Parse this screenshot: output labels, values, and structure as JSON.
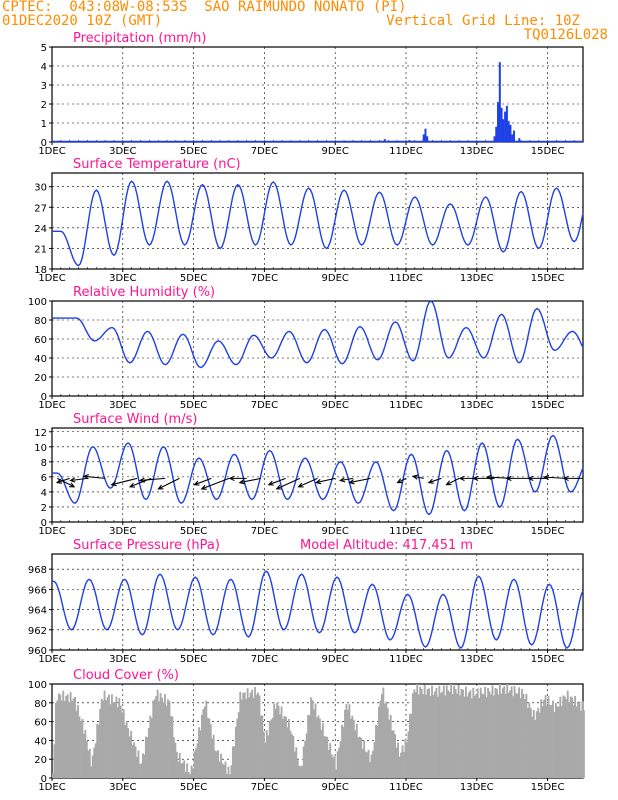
{
  "header": {
    "line1": "CPTEC:  043:08W-08:53S  SAO RAIMUNDO NONATO (PI)",
    "line2_left": "01DEC2020 10Z (GMT)",
    "line2_right": "Vertical Grid Line: 10Z",
    "line3_right": "TQ0126L028"
  },
  "colors": {
    "header": "#ff8c00",
    "title": "#ff1493",
    "line": "#1e40e6",
    "bar": "#1e40e6",
    "cloud": "#a9a9a9"
  },
  "x_labels": [
    "1DEC",
    "3DEC",
    "5DEC",
    "7DEC",
    "9DEC",
    "11DEC",
    "13DEC",
    "15DEC"
  ],
  "x_label_days": [
    0,
    2,
    4,
    6,
    8,
    10,
    12,
    14
  ],
  "x_range_days": [
    0,
    15
  ],
  "panels": {
    "precip": {
      "title": "Precipitation (mm/h)",
      "yticks": [
        "0",
        "1",
        "2",
        "3",
        "4",
        "5"
      ]
    },
    "temp": {
      "title": "Surface Temperature (nC)",
      "yticks": [
        "18",
        "21",
        "24",
        "27",
        "30"
      ]
    },
    "rh": {
      "title": "Relative Humidity (%)",
      "yticks": [
        "0",
        "20",
        "40",
        "60",
        "80",
        "100"
      ]
    },
    "wind": {
      "title": "Surface Wind (m/s)",
      "yticks": [
        "0",
        "2",
        "4",
        "6",
        "8",
        "10",
        "12"
      ]
    },
    "pres": {
      "title": "Surface Pressure (hPa)",
      "extra": "Model Altitude: 417.451 m",
      "yticks": [
        "960",
        "962",
        "964",
        "966",
        "968"
      ]
    },
    "cloud": {
      "title": "Cloud Cover (%)",
      "yticks": [
        "0",
        "20",
        "40",
        "60",
        "80",
        "100"
      ]
    }
  },
  "chart_data": [
    {
      "type": "bar",
      "title": "Precipitation (mm/h)",
      "ylim": [
        0,
        5
      ],
      "events": [
        {
          "day": 9.4,
          "value": 0.15
        },
        {
          "day": 10.1,
          "value": 0.1
        },
        {
          "day": 10.5,
          "value": 0.4
        },
        {
          "day": 10.55,
          "value": 0.7
        },
        {
          "day": 10.6,
          "value": 0.3
        },
        {
          "day": 12.5,
          "value": 0.3
        },
        {
          "day": 12.55,
          "value": 0.8
        },
        {
          "day": 12.6,
          "value": 2.1
        },
        {
          "day": 12.65,
          "value": 4.2
        },
        {
          "day": 12.7,
          "value": 1.8
        },
        {
          "day": 12.75,
          "value": 1.2
        },
        {
          "day": 12.8,
          "value": 1.6
        },
        {
          "day": 12.85,
          "value": 1.9
        },
        {
          "day": 12.9,
          "value": 1.1
        },
        {
          "day": 12.95,
          "value": 0.9
        },
        {
          "day": 13.0,
          "value": 0.4
        },
        {
          "day": 13.05,
          "value": 0.6
        },
        {
          "day": 13.2,
          "value": 0.2
        }
      ]
    },
    {
      "type": "line",
      "title": "Surface Temperature (nC)",
      "ylim": [
        18,
        32
      ],
      "daily_max": [
        23.5,
        29.5,
        30.8,
        30.8,
        30.3,
        30.3,
        30.7,
        29.8,
        29.5,
        29.2,
        28.5,
        27.5,
        28.5,
        29.3,
        29.8,
        30.3
      ],
      "daily_min": [
        18.5,
        20.0,
        21.5,
        21.5,
        21.0,
        21.5,
        21.5,
        21.0,
        21.5,
        21.5,
        21.5,
        21.5,
        20.5,
        21.0,
        22.0,
        22.0
      ]
    },
    {
      "type": "line",
      "title": "Relative Humidity (%)",
      "ylim": [
        0,
        100
      ],
      "daily_max": [
        82,
        72,
        68,
        65,
        58,
        64,
        68,
        70,
        73,
        78,
        100,
        72,
        86,
        92,
        68,
        68
      ],
      "daily_min": [
        58,
        35,
        33,
        30,
        33,
        40,
        35,
        34,
        38,
        37,
        40,
        40,
        35,
        48,
        42,
        35
      ]
    },
    {
      "type": "line",
      "title": "Surface Wind (m/s)",
      "ylim": [
        0,
        12.5
      ],
      "speed_daily_max": [
        6.5,
        10.0,
        10.5,
        10.0,
        8.5,
        9.0,
        9.5,
        8.5,
        8.0,
        8.0,
        9.0,
        9.5,
        10.5,
        11.0,
        11.5,
        8.0
      ],
      "speed_daily_min": [
        2.5,
        4.5,
        3.0,
        2.5,
        3.0,
        3.0,
        3.0,
        3.0,
        2.5,
        1.5,
        1.0,
        1.5,
        2.0,
        4.0,
        4.0,
        3.5
      ],
      "arrows": [
        {
          "day": 0.15,
          "u": 4.0,
          "v": -2.0
        },
        {
          "day": 0.5,
          "u": -3.0,
          "v": -1.0
        },
        {
          "day": 1.0,
          "u": -4.0,
          "v": -0.5
        },
        {
          "day": 1.5,
          "u": -5.0,
          "v": 0.5
        },
        {
          "day": 2.4,
          "u": -6.0,
          "v": -1.5
        },
        {
          "day": 2.8,
          "u": -5.0,
          "v": -2.0
        },
        {
          "day": 3.2,
          "u": -6.0,
          "v": -0.5
        },
        {
          "day": 3.6,
          "u": -5.0,
          "v": -2.5
        },
        {
          "day": 4.5,
          "u": -4.0,
          "v": -1.5
        },
        {
          "day": 5.0,
          "u": -6.5,
          "v": -2.5
        },
        {
          "day": 5.5,
          "u": -4.0,
          "v": 0.0
        },
        {
          "day": 5.9,
          "u": -5.0,
          "v": -1.0
        },
        {
          "day": 6.6,
          "u": -4.0,
          "v": -1.5
        },
        {
          "day": 7.0,
          "u": -5.5,
          "v": -2.5
        },
        {
          "day": 7.5,
          "u": -4.5,
          "v": -2.0
        },
        {
          "day": 8.0,
          "u": -4.5,
          "v": -1.0
        },
        {
          "day": 8.5,
          "u": -3.0,
          "v": -0.5
        },
        {
          "day": 9.0,
          "u": -5.0,
          "v": -1.0
        },
        {
          "day": 10.0,
          "u": -2.0,
          "v": -1.0
        },
        {
          "day": 10.5,
          "u": -2.5,
          "v": 0.5
        },
        {
          "day": 11.0,
          "u": -3.0,
          "v": -1.0
        },
        {
          "day": 11.5,
          "u": -3.0,
          "v": -1.5
        },
        {
          "day": 12.0,
          "u": -4.0,
          "v": 0.0
        },
        {
          "day": 12.5,
          "u": -5.0,
          "v": 0.0
        },
        {
          "day": 13.0,
          "u": -6.0,
          "v": 0.3
        },
        {
          "day": 13.5,
          "u": -5.5,
          "v": 0.0
        },
        {
          "day": 14.0,
          "u": -4.5,
          "v": 0.0
        },
        {
          "day": 14.5,
          "u": -5.0,
          "v": 0.3
        },
        {
          "day": 15.0,
          "u": -4.5,
          "v": 0.0
        }
      ]
    },
    {
      "type": "line",
      "title": "Surface Pressure (hPa)",
      "ylim": [
        960,
        969.5
      ],
      "daily_max": [
        966.8,
        967.0,
        967.0,
        967.5,
        967.2,
        967.0,
        967.8,
        967.5,
        967.2,
        966.5,
        965.5,
        965.5,
        967.3,
        967.0,
        966.5,
        966.0
      ],
      "daily_min": [
        962.0,
        962.0,
        961.5,
        962.0,
        961.5,
        961.3,
        962.0,
        961.7,
        961.7,
        961.0,
        960.3,
        960.2,
        961.0,
        960.5,
        960.2,
        960.5
      ]
    },
    {
      "type": "area",
      "title": "Cloud Cover (%)",
      "ylim": [
        0,
        100
      ],
      "levels": [
        {
          "day": 0.0,
          "value": 5
        },
        {
          "day": 0.1,
          "value": 88
        },
        {
          "day": 0.6,
          "value": 85
        },
        {
          "day": 0.9,
          "value": 50
        },
        {
          "day": 1.1,
          "value": 15
        },
        {
          "day": 1.4,
          "value": 88
        },
        {
          "day": 1.9,
          "value": 80
        },
        {
          "day": 2.1,
          "value": 55
        },
        {
          "day": 2.5,
          "value": 15
        },
        {
          "day": 2.9,
          "value": 90
        },
        {
          "day": 3.3,
          "value": 80
        },
        {
          "day": 3.5,
          "value": 25
        },
        {
          "day": 3.9,
          "value": 5
        },
        {
          "day": 4.3,
          "value": 82
        },
        {
          "day": 4.6,
          "value": 30
        },
        {
          "day": 5.0,
          "value": 5
        },
        {
          "day": 5.3,
          "value": 88
        },
        {
          "day": 5.8,
          "value": 92
        },
        {
          "day": 6.0,
          "value": 40
        },
        {
          "day": 6.3,
          "value": 80
        },
        {
          "day": 6.7,
          "value": 55
        },
        {
          "day": 7.0,
          "value": 8
        },
        {
          "day": 7.3,
          "value": 85
        },
        {
          "day": 7.7,
          "value": 45
        },
        {
          "day": 8.0,
          "value": 15
        },
        {
          "day": 8.3,
          "value": 80
        },
        {
          "day": 8.7,
          "value": 40
        },
        {
          "day": 9.0,
          "value": 20
        },
        {
          "day": 9.3,
          "value": 95
        },
        {
          "day": 9.8,
          "value": 25
        },
        {
          "day": 10.0,
          "value": 40
        },
        {
          "day": 10.2,
          "value": 95
        },
        {
          "day": 10.8,
          "value": 92
        },
        {
          "day": 11.3,
          "value": 95
        },
        {
          "day": 11.8,
          "value": 90
        },
        {
          "day": 12.3,
          "value": 92
        },
        {
          "day": 12.8,
          "value": 95
        },
        {
          "day": 13.3,
          "value": 90
        },
        {
          "day": 13.6,
          "value": 65
        },
        {
          "day": 13.9,
          "value": 85
        },
        {
          "day": 14.2,
          "value": 75
        },
        {
          "day": 14.5,
          "value": 88
        },
        {
          "day": 14.8,
          "value": 80
        },
        {
          "day": 15.0,
          "value": 75
        }
      ]
    }
  ]
}
